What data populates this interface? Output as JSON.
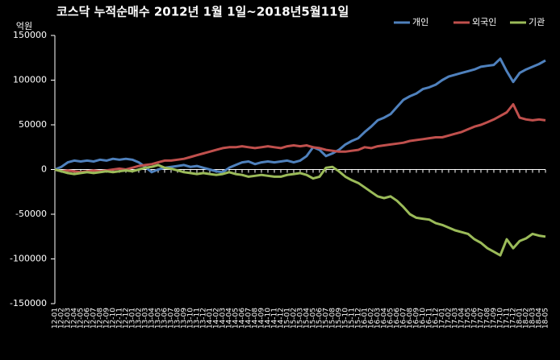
{
  "chart_data": {
    "type": "line",
    "title": "코스닥 누적순매수 2012년 1월 1일~2018년5월11일",
    "y_axis_label": "억원",
    "categories": [
      "12-01",
      "12-02",
      "12-03",
      "12-04",
      "12-05",
      "12-06",
      "12-07",
      "12-08",
      "12-09",
      "12-10",
      "12-11",
      "12-12",
      "13-01",
      "13-02",
      "13-03",
      "13-04",
      "13-05",
      "13-06",
      "13-07",
      "13-08",
      "13-09",
      "13-10",
      "13-11",
      "13-12",
      "14-01",
      "14-02",
      "14-03",
      "14-04",
      "14-05",
      "14-06",
      "14-07",
      "14-08",
      "14-09",
      "14-10",
      "14-11",
      "14-12",
      "15-01",
      "15-02",
      "15-03",
      "15-04",
      "15-05",
      "15-06",
      "15-07",
      "15-08",
      "15-09",
      "15-10",
      "15-11",
      "15-12",
      "16-01",
      "16-02",
      "16-03",
      "16-04",
      "16-05",
      "16-06",
      "16-07",
      "16-08",
      "16-09",
      "16-10",
      "16-11",
      "16-12",
      "17-01",
      "17-02",
      "17-03",
      "17-04",
      "17-05",
      "17-06",
      "17-07",
      "17-08",
      "17-09",
      "17-10",
      "17-11",
      "17-12",
      "18-01",
      "18-02",
      "18-03",
      "18-04",
      "18-05"
    ],
    "series": [
      {
        "name": "개인",
        "color": "#4f81bd",
        "values": [
          0,
          3000,
          8000,
          10000,
          9000,
          10000,
          9000,
          11000,
          10000,
          12000,
          11000,
          12000,
          11000,
          8000,
          3000,
          -3000,
          0,
          2000,
          3000,
          4000,
          5000,
          3000,
          4000,
          2000,
          0,
          -2000,
          -3000,
          2000,
          5000,
          8000,
          9000,
          6000,
          8000,
          9000,
          8000,
          9000,
          10000,
          8000,
          10000,
          15000,
          25000,
          22000,
          15000,
          18000,
          22000,
          28000,
          32000,
          35000,
          42000,
          48000,
          55000,
          58000,
          62000,
          70000,
          78000,
          82000,
          85000,
          90000,
          92000,
          95000,
          100000,
          104000,
          106000,
          108000,
          110000,
          112000,
          115000,
          116000,
          117000,
          124000,
          110000,
          98000,
          108000,
          112000,
          115000,
          118000,
          122000
        ]
      },
      {
        "name": "외국인",
        "color": "#c0504d",
        "values": [
          0,
          -2000,
          -1000,
          -2000,
          -3000,
          -2000,
          -1000,
          -2000,
          -1000,
          0,
          1000,
          0,
          2000,
          4000,
          5000,
          6000,
          8000,
          10000,
          10000,
          11000,
          12000,
          14000,
          16000,
          18000,
          20000,
          22000,
          24000,
          25000,
          25000,
          26000,
          25000,
          24000,
          25000,
          26000,
          25000,
          24000,
          26000,
          27000,
          26000,
          27000,
          25000,
          24000,
          22000,
          21000,
          20000,
          20000,
          21000,
          22000,
          25000,
          24000,
          26000,
          27000,
          28000,
          29000,
          30000,
          32000,
          33000,
          34000,
          35000,
          36000,
          36000,
          38000,
          40000,
          42000,
          45000,
          48000,
          50000,
          53000,
          56000,
          60000,
          64000,
          73000,
          58000,
          56000,
          55000,
          56000,
          55000
        ]
      },
      {
        "name": "기관",
        "color": "#9bbb59",
        "values": [
          0,
          -2000,
          -4000,
          -5000,
          -4000,
          -3000,
          -4000,
          -3000,
          -2000,
          -3000,
          -2000,
          -1000,
          -2000,
          0,
          2000,
          3000,
          5000,
          2000,
          1000,
          -1000,
          -3000,
          -4000,
          -5000,
          -4000,
          -5000,
          -6000,
          -5000,
          -3000,
          -5000,
          -6000,
          -8000,
          -7000,
          -6000,
          -7000,
          -8000,
          -8000,
          -6000,
          -5000,
          -4000,
          -6000,
          -10000,
          -8000,
          2000,
          3000,
          -2000,
          -8000,
          -12000,
          -15000,
          -20000,
          -25000,
          -30000,
          -32000,
          -30000,
          -35000,
          -42000,
          -50000,
          -54000,
          -55000,
          -56000,
          -60000,
          -62000,
          -65000,
          -68000,
          -70000,
          -72000,
          -78000,
          -82000,
          -88000,
          -92000,
          -96000,
          -78000,
          -88000,
          -80000,
          -77000,
          -72000,
          -74000,
          -75000
        ]
      }
    ],
    "ylim": [
      -150000,
      150000
    ],
    "yticks": [
      -150000,
      -100000,
      -50000,
      0,
      50000,
      100000,
      150000
    ],
    "grid": false,
    "legend": "top-right"
  }
}
